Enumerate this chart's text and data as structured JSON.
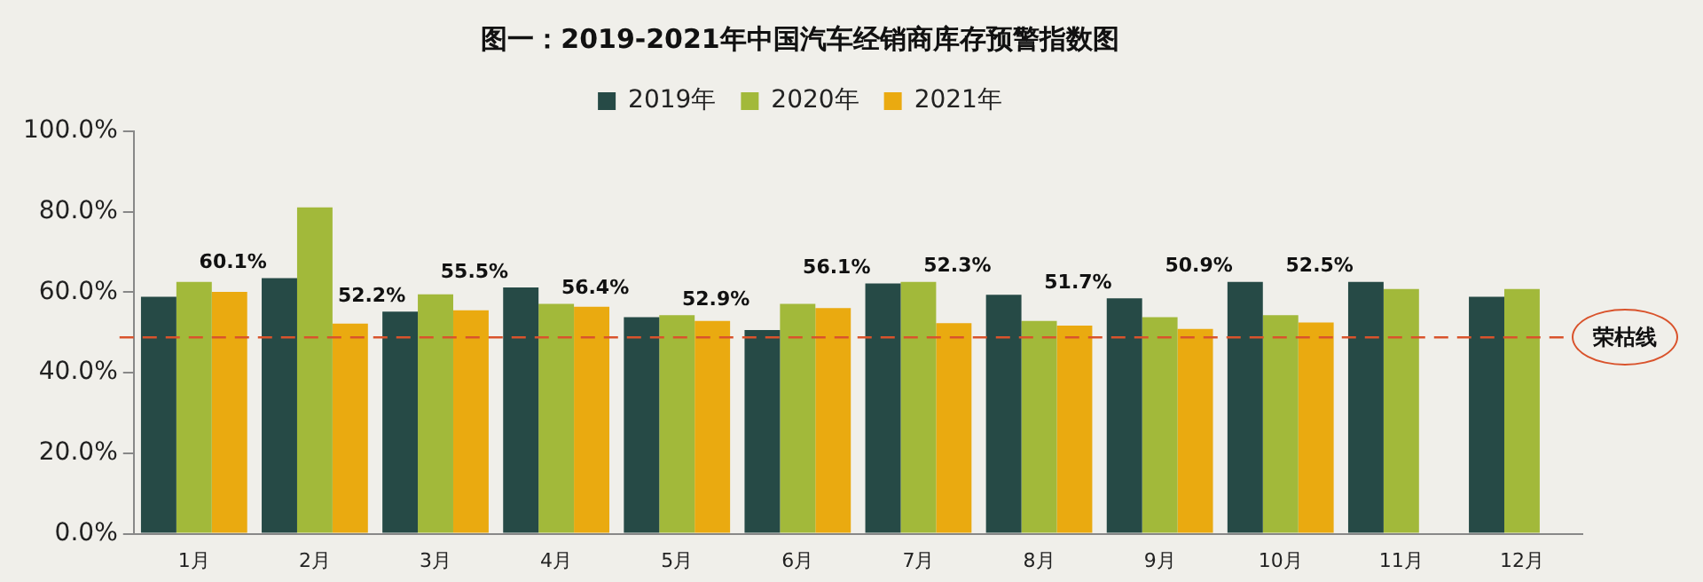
{
  "chart_data": {
    "type": "bar",
    "title": "图一：2019-2021年中国汽车经销商库存预警指数图",
    "categories": [
      "1月",
      "2月",
      "3月",
      "4月",
      "5月",
      "6月",
      "7月",
      "8月",
      "9月",
      "10月",
      "11月",
      "12月"
    ],
    "series": [
      {
        "name": "2019年",
        "color": "#264a46",
        "values": [
          58.9,
          63.5,
          55.2,
          61.2,
          53.8,
          50.6,
          62.2,
          59.4,
          58.5,
          62.6,
          62.6,
          58.9
        ]
      },
      {
        "name": "2020年",
        "color": "#a2b93a",
        "values": [
          62.6,
          81.1,
          59.5,
          57.1,
          54.3,
          57.1,
          62.6,
          52.9,
          53.8,
          54.3,
          60.8,
          60.8
        ]
      },
      {
        "name": "2021年",
        "color": "#eaaa10",
        "values": [
          60.1,
          52.2,
          55.5,
          56.4,
          52.9,
          56.1,
          52.3,
          51.7,
          50.9,
          52.5,
          null,
          null
        ],
        "value_labels": [
          "60.1%",
          "52.2%",
          "55.5%",
          "56.4%",
          "52.9%",
          "56.1%",
          "52.3%",
          "51.7%",
          "50.9%",
          "52.5%",
          null,
          null
        ]
      }
    ],
    "ylim": [
      0,
      100
    ],
    "yticks": [
      {
        "value": 0,
        "label": "0.0%"
      },
      {
        "value": 20,
        "label": "20.0%"
      },
      {
        "value": 40,
        "label": "40.0%"
      },
      {
        "value": 60,
        "label": "60.0%"
      },
      {
        "value": 80,
        "label": "80.0%"
      },
      {
        "value": 100,
        "label": "100.0%"
      }
    ],
    "ref_lines": [
      {
        "axis": "y",
        "value": 48.8,
        "label": "荣枯线",
        "color": "#d9532c",
        "line_style": "dashed"
      }
    ],
    "grid": false,
    "legend": "top"
  }
}
